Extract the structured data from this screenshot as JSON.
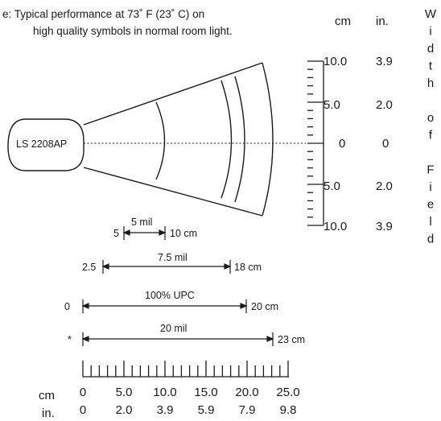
{
  "note": {
    "line1": "e: Typical performance at 73˚ F (23˚ C) on",
    "line2": "high quality symbols in normal room light."
  },
  "scanner_label": "LS 2208AP",
  "width_scale": {
    "unit_cm": "cm",
    "unit_in": "in.",
    "rows": [
      {
        "cm": "10.0",
        "in": "3.9"
      },
      {
        "cm": "5.0",
        "in": "2.0"
      },
      {
        "cm": "0",
        "in": "0"
      },
      {
        "cm": "5.0",
        "in": "2.0"
      },
      {
        "cm": "10.0",
        "in": "3.9"
      }
    ],
    "vertical_title": [
      "W",
      "i",
      "d",
      "t",
      "h",
      "",
      "o",
      "f",
      "",
      "F",
      "i",
      "e",
      "l",
      "d"
    ]
  },
  "ranges": [
    {
      "symbol": "5 mil",
      "start": "5",
      "end": "10 cm"
    },
    {
      "symbol": "7.5 mil",
      "start": "2.5",
      "end": "18 cm"
    },
    {
      "symbol": "100% UPC",
      "start": "0",
      "end": "20 cm"
    },
    {
      "symbol": "20 mil",
      "start": "*",
      "end": "23 cm"
    }
  ],
  "depth_scale": {
    "unit_cm": "cm",
    "unit_in": "in.",
    "cm_labels": [
      "0",
      "5.0",
      "10.0",
      "15.0",
      "20.0",
      "25.0"
    ],
    "in_labels": [
      "0",
      "2.0",
      "3.9",
      "5.9",
      "7.9",
      "9.8"
    ]
  },
  "colors": {
    "ink": "#1a1a1a",
    "background": "#ffffff"
  }
}
